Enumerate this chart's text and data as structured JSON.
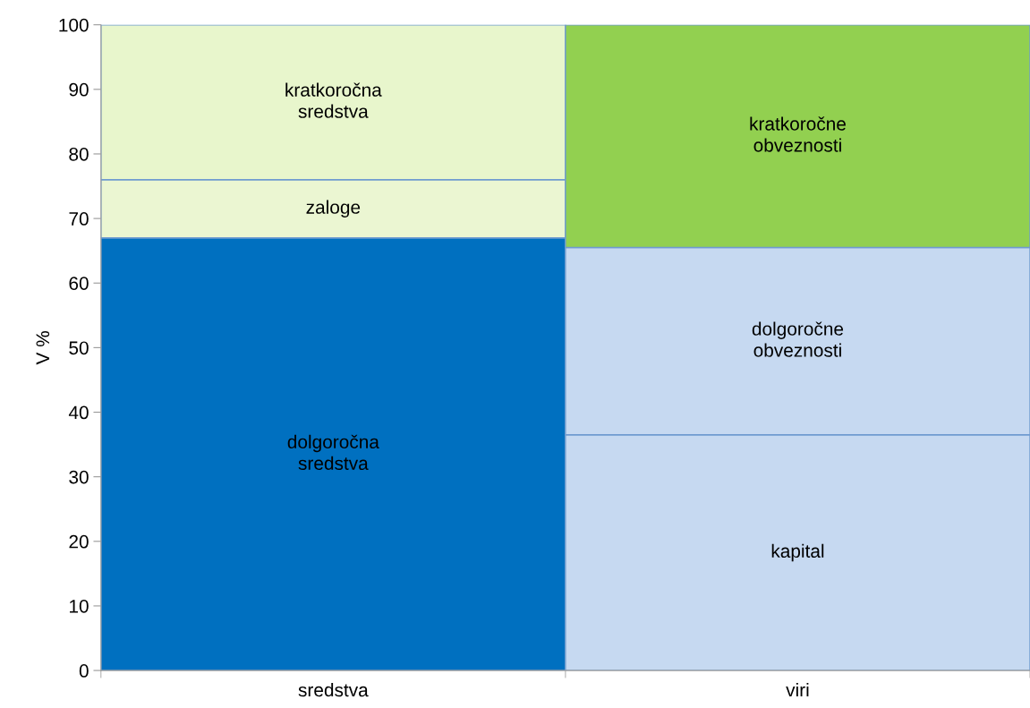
{
  "chart_data": {
    "type": "bar",
    "stacked": true,
    "ylabel": "V %",
    "categories": [
      "sredstva",
      "viri"
    ],
    "series": [
      {
        "name": "dolgoročna\nsredstva",
        "color": "#0070c0",
        "values": [
          67,
          null
        ]
      },
      {
        "name": "zaloge",
        "color": "#ebf6d2",
        "values": [
          9,
          null
        ]
      },
      {
        "name": "kratkoročna\nsredstva",
        "color": "#e8f6cc",
        "values": [
          24,
          null
        ]
      },
      {
        "name": "kapital",
        "color": "#c6d9f1",
        "values": [
          null,
          36.5
        ]
      },
      {
        "name": "dolgoročne\nobveznosti",
        "color": "#c6d9f1",
        "values": [
          null,
          29
        ]
      },
      {
        "name": "kratkoročne\nobveznosti",
        "color": "#92d050",
        "values": [
          null,
          34.5
        ]
      }
    ],
    "ylim": [
      0,
      100
    ],
    "yticks": [
      0,
      10,
      20,
      30,
      40,
      50,
      60,
      70,
      80,
      90,
      100
    ],
    "grid": false
  }
}
